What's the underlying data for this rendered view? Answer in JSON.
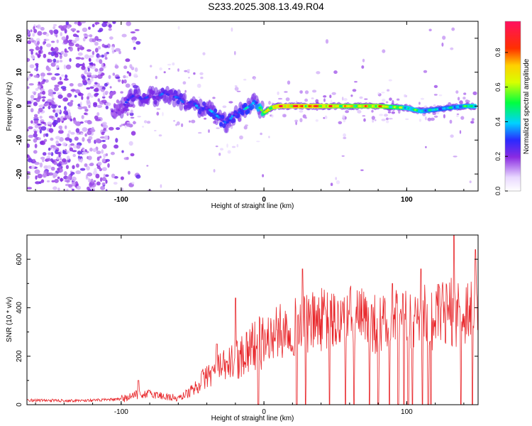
{
  "figure": {
    "title": "S233.2025.308.13.49.R04"
  },
  "chart_data": [
    {
      "type": "heatmap",
      "xlabel": "Height of straight line (km)",
      "ylabel": "Frequency (Hz)",
      "xlim": [
        -166,
        150
      ],
      "ylim": [
        -25,
        25
      ],
      "xticks": [
        -100,
        0,
        100
      ],
      "yticks": [
        -20,
        -10,
        0,
        10,
        20
      ],
      "xticklabels": [
        "-100",
        "0",
        "100"
      ],
      "yticklabels": [
        "-20",
        "-10",
        "0",
        "10",
        "20"
      ],
      "colorbar": {
        "label": "Normalized spectral amplitude",
        "range": [
          0,
          1
        ],
        "ticks": [
          0.0,
          0.2,
          0.4,
          0.6,
          0.8
        ],
        "ticklabels": [
          "0.0",
          "0.2",
          "0.4",
          "0.6",
          "0.8"
        ],
        "colormap": "rainbow (violet-blue-cyan-green-yellow-orange-red-pink)"
      },
      "ridge": {
        "description": "Dominant frequency track of the spectrum vs height",
        "x": [
          -106,
          -100,
          -95,
          -90,
          -85,
          -80,
          -75,
          -70,
          -65,
          -60,
          -55,
          -50,
          -45,
          -40,
          -35,
          -30,
          -26,
          -22,
          -18,
          -14,
          -10,
          -6,
          -2,
          0,
          5,
          10,
          20,
          40,
          60,
          80,
          100,
          110,
          120,
          130,
          140,
          148
        ],
        "y": [
          -1.5,
          -1,
          2,
          3.5,
          2,
          3,
          2.5,
          4,
          3,
          2.5,
          0.5,
          1.5,
          -1,
          -0.5,
          -2,
          -4,
          -5,
          -3,
          -2,
          -1,
          0,
          1.5,
          -1,
          -2,
          -0.5,
          0,
          0,
          0,
          0,
          0,
          -0.5,
          -1.5,
          -1,
          -0.5,
          0,
          0
        ],
        "amplitude": [
          0.2,
          0.25,
          0.3,
          0.3,
          0.3,
          0.28,
          0.3,
          0.32,
          0.3,
          0.35,
          0.3,
          0.32,
          0.35,
          0.35,
          0.38,
          0.4,
          0.35,
          0.35,
          0.38,
          0.4,
          0.42,
          0.45,
          0.55,
          0.65,
          0.8,
          0.85,
          0.9,
          0.85,
          0.75,
          0.8,
          0.55,
          0.5,
          0.45,
          0.45,
          0.5,
          0.55
        ]
      },
      "noise_region_x": [
        -166,
        -100
      ]
    },
    {
      "type": "line",
      "xlabel": "Height of straight line (km)",
      "ylabel": "SNR (10 * v/v)",
      "xlim": [
        -166,
        150
      ],
      "ylim": [
        0,
        700
      ],
      "xticks": [
        -100,
        0,
        100
      ],
      "yticks": [
        0,
        200,
        400,
        600
      ],
      "xticklabels": [
        "-100",
        "0",
        "100"
      ],
      "yticklabels": [
        "0",
        "200",
        "400",
        "600"
      ],
      "color": "#e8262a",
      "series": [
        {
          "name": "SNR envelope",
          "x": [
            -166,
            -140,
            -120,
            -100,
            -90,
            -80,
            -70,
            -60,
            -50,
            -40,
            -30,
            -20,
            -10,
            0,
            10,
            20,
            30,
            40,
            50,
            60,
            70,
            80,
            90,
            100,
            110,
            120,
            130,
            140,
            150
          ],
          "values": [
            18,
            17,
            18,
            22,
            40,
            45,
            35,
            25,
            60,
            120,
            150,
            180,
            240,
            260,
            300,
            320,
            330,
            350,
            340,
            360,
            350,
            330,
            340,
            350,
            360,
            360,
            380,
            390,
            400
          ]
        }
      ],
      "peaks": [
        {
          "x": -88,
          "value": 100
        },
        {
          "x": -33,
          "value": 250
        },
        {
          "x": -20,
          "value": 440
        },
        {
          "x": 27,
          "value": 560
        },
        {
          "x": 90,
          "value": 500
        },
        {
          "x": 110,
          "value": 560
        },
        {
          "x": 133,
          "value": 700
        },
        {
          "x": 148,
          "value": 640
        }
      ],
      "dropouts_x": [
        -4,
        23,
        29,
        46,
        57,
        63,
        74,
        80,
        88,
        94,
        98,
        101,
        104,
        111,
        115,
        117,
        138,
        146
      ]
    }
  ]
}
